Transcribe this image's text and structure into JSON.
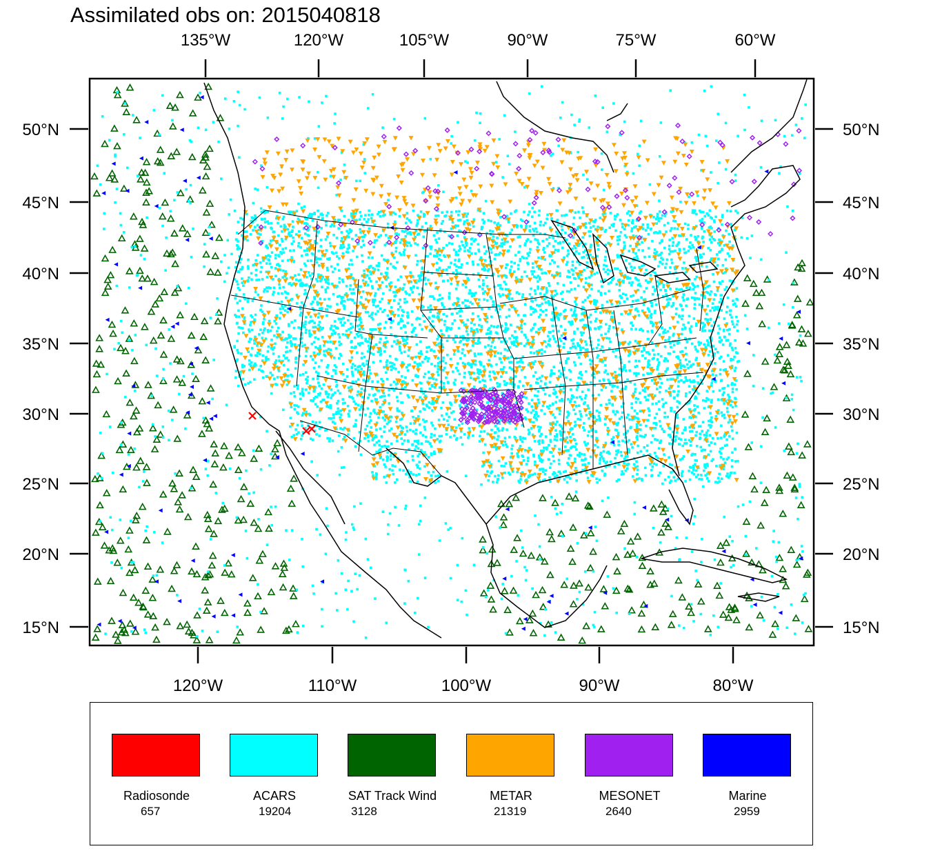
{
  "title": "Assimilated obs on: 2015040818",
  "axes": {
    "top_lon_labels": [
      "135°W",
      "120°W",
      "105°W",
      "90°W",
      "75°W",
      "60°W"
    ],
    "bottom_lon_labels": [
      "120°W",
      "110°W",
      "100°W",
      "90°W",
      "80°W"
    ],
    "lat_labels": [
      "50°N",
      "45°N",
      "40°N",
      "35°N",
      "30°N",
      "25°N",
      "20°N",
      "15°N"
    ]
  },
  "colors": {
    "radiosonde": "#ff0000",
    "acars": "#00ffff",
    "sat_track_wind": "#006400",
    "metar": "#ffa500",
    "mesonet": "#a020f0",
    "marine": "#0000ff"
  },
  "legend": [
    {
      "name": "Radiosonde",
      "count": "657",
      "color": "#ff0000"
    },
    {
      "name": "ACARS",
      "count": "19204",
      "color": "#00ffff"
    },
    {
      "name": "SAT Track Wind",
      "count": "3128",
      "color": "#006400"
    },
    {
      "name": "METAR",
      "count": "21319",
      "color": "#ffa500"
    },
    {
      "name": "MESONET",
      "count": "2640",
      "color": "#a020f0"
    },
    {
      "name": "Marine",
      "count": "2959",
      "color": "#0000ff"
    }
  ]
}
